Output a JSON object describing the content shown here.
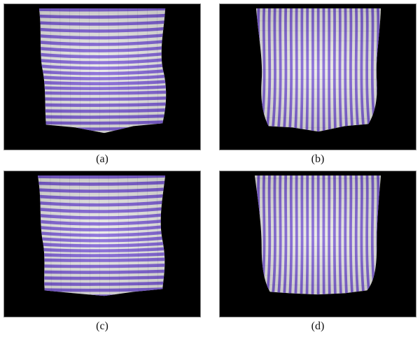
{
  "figure": {
    "panels": [
      {
        "id": "a",
        "caption": "(a)",
        "stripe_orientation": "horizontal",
        "stripe_color": "#7b5bd6",
        "base_color": "#e9e9e6"
      },
      {
        "id": "b",
        "caption": "(b)",
        "stripe_orientation": "vertical",
        "stripe_color": "#7b5bd6",
        "base_color": "#e9e9e6"
      },
      {
        "id": "c",
        "caption": "(c)",
        "stripe_orientation": "horizontal",
        "stripe_color": "#7b5bd6",
        "base_color": "#e9e9e6"
      },
      {
        "id": "d",
        "caption": "(d)",
        "stripe_orientation": "vertical",
        "stripe_color": "#7b5bd6",
        "base_color": "#e9e9e6"
      }
    ]
  }
}
